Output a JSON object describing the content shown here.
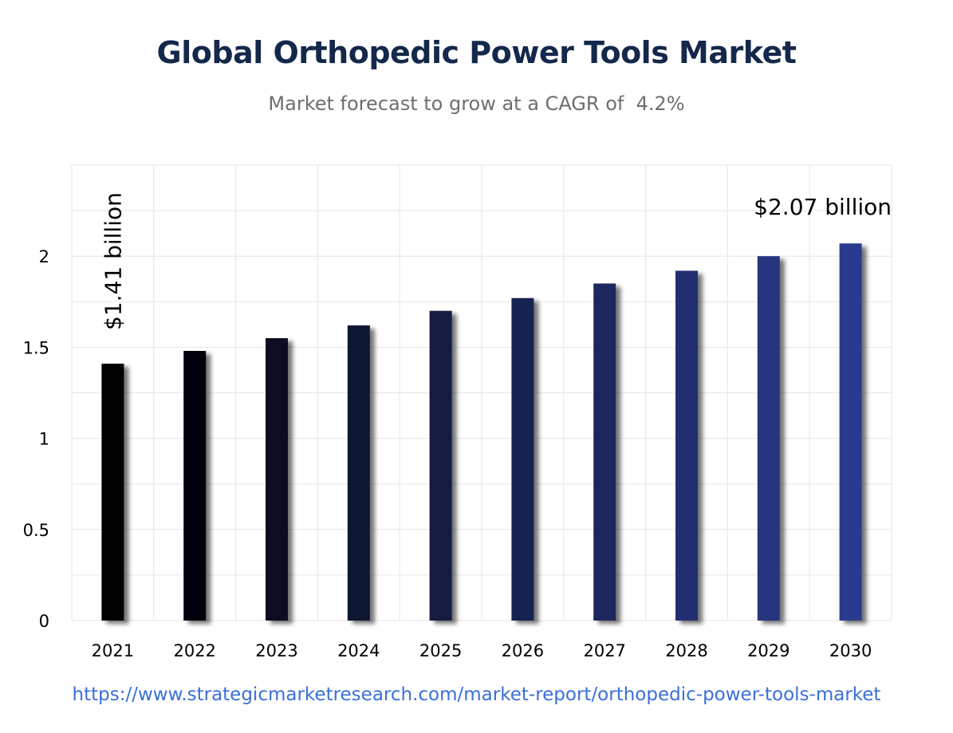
{
  "header": {
    "title": "Global Orthopedic Power Tools Market",
    "subtitle": "Market forecast to grow at a CAGR of  4.2%"
  },
  "footer": {
    "url": "https://www.strategicmarketresearch.com/market-report/orthopedic-power-tools-market"
  },
  "colors": {
    "bar_start": "#000000",
    "bar_end": "#2b3a8f",
    "grid": "#e6e6e6",
    "axis_text": "#000000"
  },
  "chart_data": {
    "type": "bar",
    "title": "Global Orthopedic Power Tools Market",
    "subtitle": "Market forecast to grow at a CAGR of  4.2%",
    "categories": [
      "2021",
      "2022",
      "2023",
      "2024",
      "2025",
      "2026",
      "2027",
      "2028",
      "2029",
      "2030"
    ],
    "values": [
      1.41,
      1.48,
      1.55,
      1.62,
      1.7,
      1.77,
      1.85,
      1.92,
      2.0,
      2.07
    ],
    "ylim": [
      0,
      2.5
    ],
    "yticks": [
      0,
      0.5,
      1,
      1.5,
      2
    ],
    "ytick_labels": [
      "0",
      "0.5",
      "1",
      "1.5",
      "2"
    ],
    "grid": true,
    "xlabel": "",
    "ylabel": "",
    "annotations": [
      {
        "text": "$1.41 billion",
        "category": "2021",
        "orientation": "vertical"
      },
      {
        "text": "$2.07 billion",
        "category": "2030",
        "orientation": "horizontal"
      }
    ]
  }
}
